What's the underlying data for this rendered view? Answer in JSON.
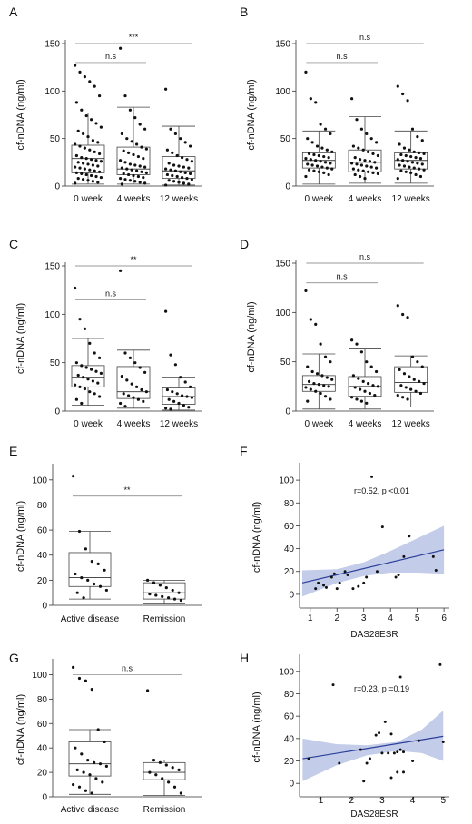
{
  "figure": {
    "panel_labels": [
      "A",
      "B",
      "C",
      "D",
      "E",
      "F",
      "G",
      "H"
    ]
  },
  "chart_data": [
    {
      "panel": "A",
      "type": "box",
      "categories": [
        "0 week",
        "4 weeks",
        "12 weeks"
      ],
      "ylabel": "cf-nDNA (ng/ml)",
      "ylim": [
        0,
        150
      ],
      "yticks": [
        0,
        50,
        100,
        150
      ],
      "boxes": [
        {
          "min": 2,
          "q1": 14,
          "median": 29,
          "q3": 43,
          "max": 77
        },
        {
          "min": 2,
          "q1": 12,
          "median": 18,
          "q3": 41,
          "max": 83
        },
        {
          "min": 1,
          "q1": 8,
          "median": 16,
          "q3": 31,
          "max": 63
        }
      ],
      "points": [
        [
          127,
          120,
          115,
          110,
          105,
          95,
          88,
          80,
          74,
          70,
          66,
          62,
          58,
          55,
          52,
          48,
          46,
          44,
          42,
          40,
          38,
          36,
          34,
          32,
          30,
          29,
          28,
          27,
          26,
          25,
          24,
          23,
          22,
          21,
          20,
          19,
          18,
          17,
          16,
          15,
          14,
          13,
          12,
          11,
          10,
          9,
          8,
          7,
          6,
          5,
          4,
          3
        ],
        [
          145,
          95,
          80,
          72,
          65,
          60,
          55,
          50,
          47,
          44,
          41,
          39,
          37,
          35,
          33,
          31,
          29,
          27,
          25,
          23,
          22,
          21,
          20,
          19,
          18,
          17,
          16,
          15,
          14,
          13,
          12,
          11,
          10,
          9,
          8,
          7,
          6,
          5,
          4,
          3,
          2
        ],
        [
          102,
          60,
          55,
          50,
          46,
          42,
          38,
          35,
          32,
          30,
          28,
          26,
          24,
          22,
          21,
          20,
          19,
          18,
          17,
          16,
          15,
          14,
          13,
          12,
          11,
          10,
          9,
          8,
          7,
          6,
          5,
          4,
          3,
          2,
          1
        ]
      ],
      "comparisons": [
        {
          "from": 0,
          "to": 1,
          "label": "n.s",
          "y": 130
        },
        {
          "from": 0,
          "to": 2,
          "label": "***",
          "y": 150
        }
      ]
    },
    {
      "panel": "B",
      "type": "box",
      "categories": [
        "0 week",
        "4 weeks",
        "12 weeks"
      ],
      "ylabel": "cf-nDNA (ng/ml)",
      "ylim": [
        0,
        150
      ],
      "yticks": [
        0,
        50,
        100,
        150
      ],
      "boxes": [
        {
          "min": 2,
          "q1": 19,
          "median": 27,
          "q3": 35,
          "max": 58
        },
        {
          "min": 3,
          "q1": 15,
          "median": 25,
          "q3": 38,
          "max": 73
        },
        {
          "min": 3,
          "q1": 18,
          "median": 27,
          "q3": 35,
          "max": 58
        }
      ],
      "points": [
        [
          120,
          92,
          88,
          65,
          60,
          55,
          50,
          46,
          42,
          40,
          38,
          36,
          34,
          33,
          32,
          31,
          30,
          29,
          28,
          27,
          26,
          25,
          24,
          23,
          22,
          21,
          20,
          19,
          18,
          17,
          16,
          15,
          14,
          12,
          10
        ],
        [
          92,
          70,
          60,
          55,
          50,
          46,
          42,
          40,
          38,
          36,
          34,
          32,
          30,
          28,
          27,
          26,
          25,
          24,
          23,
          22,
          21,
          20,
          19,
          18,
          17,
          16,
          15,
          14,
          13,
          12,
          10,
          8
        ],
        [
          105,
          97,
          90,
          60,
          52,
          48,
          44,
          40,
          38,
          36,
          35,
          34,
          33,
          32,
          31,
          30,
          29,
          28,
          27,
          26,
          25,
          24,
          23,
          22,
          21,
          20,
          19,
          18,
          17,
          16,
          15,
          14,
          12,
          10,
          8
        ]
      ],
      "comparisons": [
        {
          "from": 0,
          "to": 1,
          "label": "n.s",
          "y": 130
        },
        {
          "from": 0,
          "to": 2,
          "label": "n.s",
          "y": 150
        }
      ]
    },
    {
      "panel": "C",
      "type": "box",
      "categories": [
        "0 week",
        "4 weeks",
        "12 weeks"
      ],
      "ylabel": "cf-nDNA (ng/ml)",
      "ylim": [
        0,
        150
      ],
      "yticks": [
        0,
        50,
        100,
        150
      ],
      "boxes": [
        {
          "min": 6,
          "q1": 25,
          "median": 35,
          "q3": 47,
          "max": 75
        },
        {
          "min": 3,
          "q1": 13,
          "median": 20,
          "q3": 46,
          "max": 63
        },
        {
          "min": 1,
          "q1": 7,
          "median": 15,
          "q3": 24,
          "max": 35
        }
      ],
      "points": [
        [
          127,
          95,
          85,
          70,
          60,
          55,
          50,
          47,
          45,
          43,
          41,
          39,
          37,
          35,
          33,
          31,
          29,
          27,
          25,
          23,
          20,
          18,
          15,
          12,
          8
        ],
        [
          145,
          60,
          55,
          50,
          45,
          40,
          36,
          32,
          28,
          25,
          22,
          20,
          18,
          16,
          14,
          12,
          10,
          8,
          5
        ],
        [
          103,
          58,
          48,
          35,
          30,
          25,
          22,
          20,
          18,
          16,
          15,
          14,
          12,
          10,
          8,
          6,
          4,
          3,
          2
        ]
      ],
      "comparisons": [
        {
          "from": 0,
          "to": 1,
          "label": "n.s",
          "y": 115
        },
        {
          "from": 0,
          "to": 2,
          "label": "**",
          "y": 150
        }
      ]
    },
    {
      "panel": "D",
      "type": "box",
      "categories": [
        "0 week",
        "4 weeks",
        "12 weeks"
      ],
      "ylabel": "cf-nDNA (ng/ml)",
      "ylim": [
        0,
        150
      ],
      "yticks": [
        0,
        50,
        100,
        150
      ],
      "boxes": [
        {
          "min": 2,
          "q1": 20,
          "median": 27,
          "q3": 36,
          "max": 58
        },
        {
          "min": 2,
          "q1": 15,
          "median": 25,
          "q3": 35,
          "max": 63
        },
        {
          "min": 4,
          "q1": 19,
          "median": 29,
          "q3": 45,
          "max": 56
        }
      ],
      "points": [
        [
          122,
          93,
          88,
          68,
          55,
          50,
          45,
          40,
          38,
          36,
          34,
          32,
          30,
          28,
          27,
          26,
          25,
          24,
          22,
          20,
          18,
          15,
          12,
          10
        ],
        [
          72,
          68,
          60,
          50,
          45,
          40,
          36,
          33,
          30,
          28,
          26,
          25,
          24,
          22,
          20,
          18,
          16,
          14,
          12,
          10,
          8
        ],
        [
          107,
          98,
          95,
          55,
          50,
          45,
          42,
          38,
          35,
          32,
          30,
          28,
          26,
          24,
          22,
          20,
          18,
          16,
          14,
          12
        ]
      ],
      "comparisons": [
        {
          "from": 0,
          "to": 1,
          "label": "n.s",
          "y": 130
        },
        {
          "from": 0,
          "to": 2,
          "label": "n.s",
          "y": 150
        }
      ]
    },
    {
      "panel": "E",
      "type": "box",
      "categories": [
        "Active disease",
        "Remission"
      ],
      "ylabel": "cf-nDNA (ng/ml)",
      "ylim": [
        0,
        110
      ],
      "yticks": [
        0,
        20,
        40,
        60,
        80,
        100
      ],
      "boxes": [
        {
          "min": 5,
          "q1": 15,
          "median": 22,
          "q3": 42,
          "max": 59
        },
        {
          "min": 1,
          "q1": 5,
          "median": 10,
          "q3": 18,
          "max": 20
        }
      ],
      "points": [
        [
          103,
          59,
          45,
          35,
          33,
          28,
          25,
          22,
          20,
          17,
          15,
          12,
          10,
          6
        ],
        [
          20,
          18,
          16,
          14,
          12,
          10,
          9,
          8,
          7,
          6,
          5,
          4
        ]
      ],
      "comparisons": [
        {
          "from": 0,
          "to": 1,
          "label": "**",
          "y": 87
        }
      ]
    },
    {
      "panel": "F",
      "type": "scatter",
      "xlabel": "DAS28ESR",
      "ylabel": "cf-nDNA (ng/ml)",
      "xlim": [
        0.6,
        6.2
      ],
      "ylim": [
        -12,
        112
      ],
      "xticks": [
        1,
        2,
        3,
        4,
        5,
        6
      ],
      "yticks": [
        0,
        20,
        40,
        60,
        80,
        100
      ],
      "annotation": "r=0.52, p <0.01",
      "x": [
        1.2,
        1.3,
        1.5,
        1.6,
        1.8,
        1.9,
        2.0,
        2.1,
        2.3,
        2.4,
        2.6,
        2.8,
        3.0,
        3.1,
        3.3,
        3.5,
        3.7,
        4.2,
        4.3,
        4.5,
        4.7,
        5.6,
        5.7
      ],
      "y": [
        5,
        10,
        8,
        6,
        15,
        18,
        5,
        10,
        20,
        17,
        5,
        7,
        10,
        15,
        103,
        20,
        59,
        15,
        17,
        33,
        51,
        33,
        21
      ],
      "regression": {
        "x": [
          0.7,
          6.0
        ],
        "y": [
          10,
          39
        ]
      },
      "ci_upper": [
        {
          "x": 0.7,
          "y": 21
        },
        {
          "x": 2.0,
          "y": 22
        },
        {
          "x": 3.0,
          "y": 28
        },
        {
          "x": 4.0,
          "y": 38
        },
        {
          "x": 5.0,
          "y": 49
        },
        {
          "x": 6.0,
          "y": 60
        }
      ],
      "ci_lower": [
        {
          "x": 0.7,
          "y": -2
        },
        {
          "x": 2.0,
          "y": 10
        },
        {
          "x": 3.0,
          "y": 16
        },
        {
          "x": 4.0,
          "y": 19
        },
        {
          "x": 5.0,
          "y": 19
        },
        {
          "x": 6.0,
          "y": 18
        }
      ]
    },
    {
      "panel": "G",
      "type": "box",
      "categories": [
        "Active disease",
        "Remission"
      ],
      "ylabel": "cf-nDNA (ng/ml)",
      "ylim": [
        0,
        110
      ],
      "yticks": [
        0,
        20,
        40,
        60,
        80,
        100
      ],
      "boxes": [
        {
          "min": 2,
          "q1": 17,
          "median": 27,
          "q3": 45,
          "max": 55
        },
        {
          "min": 1,
          "q1": 14,
          "median": 20,
          "q3": 28,
          "max": 30
        }
      ],
      "points": [
        [
          106,
          97,
          95,
          88,
          55,
          45,
          40,
          35,
          30,
          28,
          27,
          25,
          22,
          20,
          18,
          15,
          12,
          10,
          8,
          5,
          3
        ],
        [
          87,
          30,
          28,
          26,
          24,
          22,
          20,
          18,
          15,
          12,
          8,
          3
        ]
      ],
      "comparisons": [
        {
          "from": 0,
          "to": 1,
          "label": "n.s",
          "y": 100
        }
      ]
    },
    {
      "panel": "H",
      "type": "scatter",
      "xlabel": "DAS28ESR",
      "ylabel": "cf-nDNA (ng/ml)",
      "xlim": [
        0.3,
        5.2
      ],
      "ylim": [
        -12,
        112
      ],
      "xticks": [
        1,
        2,
        3,
        4,
        5
      ],
      "yticks": [
        0,
        20,
        40,
        60,
        80,
        100
      ],
      "annotation": "r=0.23, p =0.19",
      "x": [
        0.6,
        1.4,
        1.6,
        2.3,
        2.4,
        2.5,
        2.6,
        2.8,
        2.9,
        3.0,
        3.1,
        3.2,
        3.3,
        3.3,
        3.4,
        3.5,
        3.5,
        3.6,
        3.6,
        3.7,
        3.7,
        4.0,
        4.2,
        4.9,
        5.0
      ],
      "y": [
        22,
        88,
        18,
        30,
        2,
        18,
        22,
        43,
        45,
        27,
        55,
        27,
        44,
        5,
        27,
        28,
        10,
        95,
        30,
        28,
        10,
        20,
        38,
        106,
        37
      ],
      "regression": {
        "x": [
          0.4,
          5.0
        ],
        "y": [
          22,
          42
        ]
      },
      "ci_upper": [
        {
          "x": 0.4,
          "y": 40
        },
        {
          "x": 1.5,
          "y": 35
        },
        {
          "x": 2.5,
          "y": 34
        },
        {
          "x": 3.5,
          "y": 37
        },
        {
          "x": 4.3,
          "y": 48
        },
        {
          "x": 5.0,
          "y": 65
        }
      ],
      "ci_lower": [
        {
          "x": 0.4,
          "y": 2
        },
        {
          "x": 1.5,
          "y": 16
        },
        {
          "x": 2.5,
          "y": 25
        },
        {
          "x": 3.5,
          "y": 29
        },
        {
          "x": 4.3,
          "y": 27
        },
        {
          "x": 5.0,
          "y": 20
        }
      ]
    }
  ]
}
